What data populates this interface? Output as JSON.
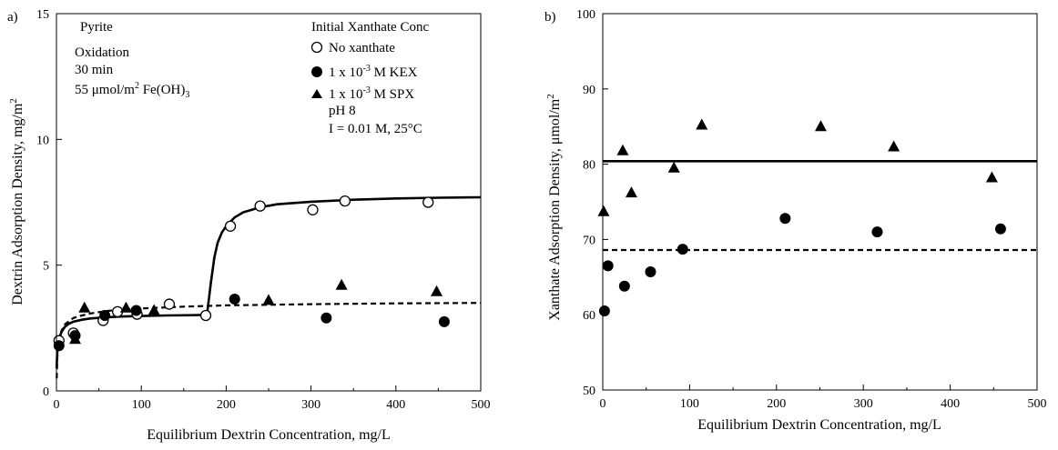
{
  "chart_data": [
    {
      "type": "scatter",
      "panel_label": "a)",
      "title": "",
      "xlabel": "Equilibrium Dextrin Concentration, mg/L",
      "ylabel_main": "Dextrin Adsorption Density, mg/m",
      "ylabel_sup": "2",
      "xlim": [
        0,
        500
      ],
      "ylim": [
        0,
        15
      ],
      "xticks": [
        0,
        100,
        200,
        300,
        400,
        500
      ],
      "yticks": [
        0,
        5,
        10,
        15
      ],
      "grid": false,
      "annotations": {
        "mineral": "Pyrite",
        "oxidation": "Oxidation",
        "time": "30 min",
        "coverage_main": "55 μmol/m",
        "coverage_sup": "2",
        "coverage_rest": " Fe(OH)",
        "coverage_sub": "3",
        "ph": "pH 8",
        "ionic": "I = 0.01 M, 25°C"
      },
      "legend": {
        "title": "Initial Xanthate Conc",
        "position": "top-right",
        "entries": [
          {
            "marker": "open-circle",
            "label": "No xanthate"
          },
          {
            "marker": "filled-circle",
            "pre": "1 x 10",
            "sup": "-3",
            "post": " M KEX"
          },
          {
            "marker": "filled-triangle",
            "pre": "1 x 10",
            "sup": "-3",
            "post": " M SPX"
          }
        ]
      },
      "series": [
        {
          "marker": "open-circle",
          "x": [
            3,
            20,
            55,
            72,
            95,
            133,
            176,
            205,
            240,
            302,
            340,
            438
          ],
          "y": [
            2.0,
            2.3,
            2.8,
            3.15,
            3.05,
            3.45,
            3.0,
            6.55,
            7.35,
            7.2,
            7.55,
            7.5
          ]
        },
        {
          "marker": "filled-circle",
          "x": [
            3,
            22,
            57,
            94,
            210,
            318,
            457
          ],
          "y": [
            1.8,
            2.2,
            3.0,
            3.2,
            3.65,
            2.9,
            2.75
          ]
        },
        {
          "marker": "filled-triangle",
          "x": [
            22,
            33,
            82,
            115,
            250,
            336,
            448
          ],
          "y": [
            2.05,
            3.3,
            3.3,
            3.2,
            3.6,
            4.2,
            3.95
          ]
        }
      ],
      "fit_lines": [
        {
          "style": "solid",
          "x": [
            0.2,
            1,
            2,
            4,
            6,
            8,
            10,
            15,
            20,
            30,
            40,
            60,
            80,
            100,
            130,
            160,
            176,
            178,
            182,
            186,
            190,
            195,
            200,
            210,
            220,
            240,
            260,
            300,
            350,
            400,
            450,
            500
          ],
          "y": [
            0.9,
            1.55,
            1.85,
            2.15,
            2.35,
            2.45,
            2.55,
            2.68,
            2.75,
            2.83,
            2.88,
            2.93,
            2.96,
            2.98,
            3.0,
            3.01,
            3.02,
            3.2,
            4.3,
            5.3,
            5.9,
            6.3,
            6.55,
            6.9,
            7.1,
            7.3,
            7.42,
            7.52,
            7.6,
            7.65,
            7.68,
            7.7
          ]
        },
        {
          "style": "dashed",
          "x": [
            0.3,
            1,
            2,
            4,
            6,
            10,
            20,
            30,
            40,
            60,
            80,
            100,
            150,
            200,
            300,
            400,
            500
          ],
          "y": [
            0.5,
            1.3,
            1.75,
            2.15,
            2.4,
            2.65,
            2.9,
            3.0,
            3.08,
            3.18,
            3.24,
            3.28,
            3.35,
            3.4,
            3.45,
            3.48,
            3.5
          ]
        }
      ]
    },
    {
      "type": "scatter",
      "panel_label": "b)",
      "title": "",
      "xlabel": "Equilibrium Dextrin Concentration, mg/L",
      "ylabel_main": "Xanthate Adsorption Density, μmol/m",
      "ylabel_sup": "2",
      "xlim": [
        0,
        500
      ],
      "ylim": [
        50,
        100
      ],
      "xticks": [
        0,
        100,
        200,
        300,
        400,
        500
      ],
      "yticks": [
        50,
        60,
        70,
        80,
        90,
        100
      ],
      "grid": false,
      "legend": null,
      "series": [
        {
          "marker": "filled-circle",
          "x": [
            2,
            6,
            25,
            55,
            92,
            210,
            316,
            458
          ],
          "y": [
            60.5,
            66.5,
            63.8,
            65.7,
            68.7,
            72.8,
            71.0,
            71.4
          ]
        },
        {
          "marker": "filled-triangle",
          "x": [
            1,
            23,
            33,
            82,
            114,
            251,
            335,
            448
          ],
          "y": [
            73.7,
            81.8,
            76.2,
            79.5,
            85.2,
            85.0,
            82.3,
            78.2
          ]
        }
      ],
      "fit_lines": [
        {
          "style": "solid",
          "x": [
            0,
            500
          ],
          "y": [
            80.4,
            80.4
          ]
        },
        {
          "style": "dashed",
          "x": [
            0,
            500
          ],
          "y": [
            68.6,
            68.6
          ]
        }
      ]
    }
  ]
}
